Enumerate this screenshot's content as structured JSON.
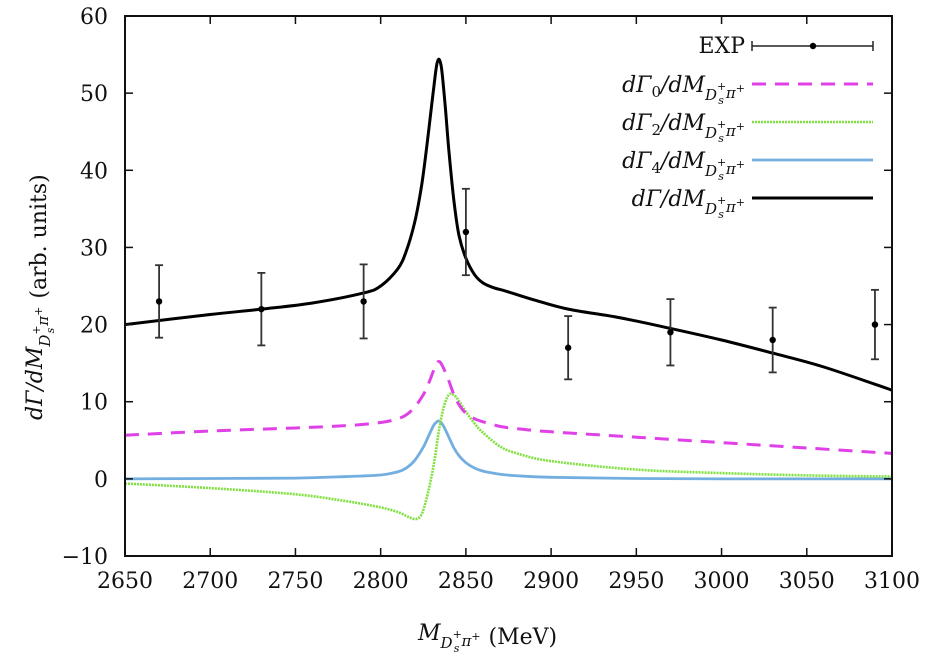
{
  "chart_data": {
    "type": "line",
    "title": "",
    "xlabel": {
      "main": "M",
      "sub": "D",
      "sub_sup": "+",
      "sub_sub": "s",
      "sub2": "π",
      "sub2_sup": "+",
      "unit": "(MeV)"
    },
    "ylabel": {
      "pre": "dΓ/dM",
      "sub": "D",
      "sub_sup": "+",
      "sub_sub": "s",
      "sub2": "π",
      "sub2_sup": "+",
      "unit": "(arb. units)"
    },
    "xlim": [
      2650,
      3100
    ],
    "ylim": [
      -10,
      60
    ],
    "xticks": [
      2650,
      2700,
      2750,
      2800,
      2850,
      2900,
      2950,
      3000,
      3050,
      3100
    ],
    "xtick_labels": [
      "2650",
      "2700",
      "2750",
      "2800",
      "2850",
      "2900",
      "2950",
      "3000",
      "3050",
      "3100"
    ],
    "yticks": [
      -10,
      0,
      10,
      20,
      30,
      40,
      50,
      60
    ],
    "ytick_labels": [
      "−10",
      "0",
      "10",
      "20",
      "30",
      "40",
      "50",
      "60"
    ],
    "grid": false,
    "legend_placement": "top-right",
    "points": {
      "name": "EXP",
      "color": "#000000",
      "x": [
        2670,
        2730,
        2790,
        2850,
        2910,
        2970,
        3030,
        3090
      ],
      "y": [
        23,
        22,
        23,
        32,
        17,
        19,
        18,
        20
      ],
      "err": [
        4.7,
        4.7,
        4.8,
        5.6,
        4.1,
        4.3,
        4.2,
        4.5
      ]
    },
    "series": [
      {
        "name": "dΓ0/dM",
        "legend": {
          "pre": "dΓ",
          "idx": "0",
          "post": "/dM"
        },
        "color": "#e040e8",
        "style": "dashed",
        "x": [
          2650,
          2700,
          2750,
          2780,
          2800,
          2810,
          2815,
          2820,
          2825,
          2828,
          2831,
          2833,
          2834,
          2835,
          2837,
          2840,
          2843,
          2846,
          2850,
          2855,
          2860,
          2870,
          2880,
          2900,
          2950,
          3000,
          3050,
          3100
        ],
        "y": [
          5.65,
          6.2,
          6.6,
          6.9,
          7.3,
          7.8,
          8.3,
          9.3,
          10.9,
          12.3,
          14.0,
          15.0,
          15.2,
          15.1,
          14.3,
          12.7,
          10.9,
          9.6,
          8.5,
          7.8,
          7.4,
          6.8,
          6.5,
          6.1,
          5.4,
          4.7,
          4.0,
          3.3
        ]
      },
      {
        "name": "dΓ2/dM",
        "legend": {
          "pre": "dΓ",
          "idx": "2",
          "post": "/dM"
        },
        "color": "#80e040",
        "style": "dotted",
        "x": [
          2650,
          2700,
          2750,
          2780,
          2800,
          2810,
          2815,
          2818,
          2821,
          2824,
          2827,
          2830,
          2832,
          2834,
          2836,
          2838,
          2840,
          2842,
          2845,
          2850,
          2855,
          2860,
          2870,
          2880,
          2900,
          2950,
          3000,
          3050,
          3100
        ],
        "y": [
          -0.6,
          -1.2,
          -2.0,
          -2.9,
          -3.7,
          -4.3,
          -4.8,
          -5.1,
          -5.2,
          -4.6,
          -2.5,
          0.5,
          3.0,
          6.0,
          8.4,
          10.0,
          10.9,
          11.0,
          10.4,
          8.7,
          7.2,
          6.0,
          4.2,
          3.3,
          2.3,
          1.2,
          0.75,
          0.45,
          0.3
        ]
      },
      {
        "name": "dΓ4/dM",
        "legend": {
          "pre": "dΓ",
          "idx": "4",
          "post": "/dM"
        },
        "color": "#72aee0",
        "style": "solid",
        "x": [
          2650,
          2700,
          2750,
          2780,
          2800,
          2810,
          2815,
          2820,
          2825,
          2828,
          2831,
          2833,
          2834,
          2835,
          2837,
          2840,
          2843,
          2846,
          2850,
          2855,
          2860,
          2870,
          2880,
          2900,
          2950,
          3000,
          3050,
          3100
        ],
        "y": [
          0.0,
          0.05,
          0.1,
          0.3,
          0.5,
          0.9,
          1.4,
          2.4,
          4.1,
          5.5,
          6.9,
          7.4,
          7.5,
          7.4,
          6.8,
          5.4,
          4.0,
          3.0,
          2.1,
          1.4,
          1.0,
          0.6,
          0.4,
          0.2,
          0.05,
          0.0,
          0.0,
          0.0
        ]
      },
      {
        "name": "dΓ/dM",
        "legend": {
          "pre": "dΓ",
          "idx": "",
          "post": "/dM"
        },
        "color": "#000000",
        "style": "solid-thick",
        "x": [
          2650,
          2700,
          2730,
          2760,
          2790,
          2800,
          2810,
          2815,
          2820,
          2824,
          2827,
          2830,
          2832,
          2833,
          2834,
          2835,
          2836,
          2838,
          2840,
          2843,
          2846,
          2850,
          2855,
          2860,
          2866,
          2874,
          2890,
          2910,
          2940,
          2970,
          3000,
          3030,
          3060,
          3100
        ],
        "y": [
          20.0,
          21.3,
          22.0,
          22.8,
          24.1,
          25.0,
          27.2,
          29.5,
          33.3,
          38.0,
          43.0,
          48.6,
          52.3,
          53.8,
          54.4,
          54.0,
          52.7,
          48.0,
          42.6,
          36.0,
          31.5,
          28.6,
          26.5,
          25.4,
          24.8,
          24.3,
          23.2,
          22.0,
          20.9,
          19.5,
          18.0,
          16.3,
          14.5,
          11.5
        ]
      }
    ],
    "legend_sub": {
      "main": "D",
      "sup": "+",
      "sub": "s",
      "pi": "π",
      "pi_sup": "+"
    }
  }
}
